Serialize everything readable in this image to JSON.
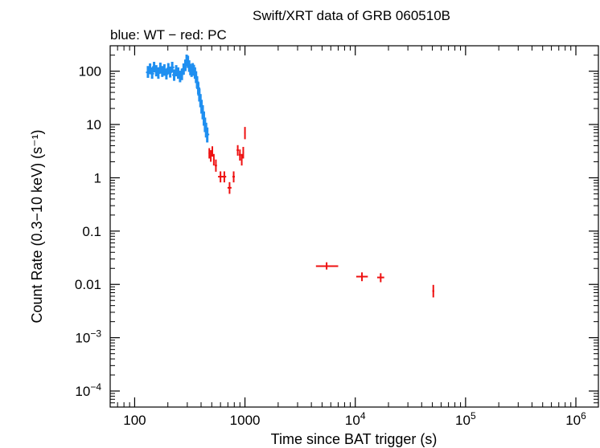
{
  "chart_data": {
    "type": "scatter",
    "title": "Swift/XRT data of GRB 060510B",
    "subtitle": "blue: WT − red: PC",
    "xlabel": "Time since BAT trigger (s)",
    "ylabel": "Count Rate (0.3−10 keV) (s⁻¹)",
    "x_scale": "log",
    "y_scale": "log",
    "xlim": [
      60,
      1600000
    ],
    "ylim": [
      5e-05,
      300
    ],
    "x_ticks": [
      {
        "value": 100,
        "base": "100",
        "exp": ""
      },
      {
        "value": 1000,
        "base": "1000",
        "exp": ""
      },
      {
        "value": 10000,
        "base": "10",
        "exp": "4"
      },
      {
        "value": 100000,
        "base": "10",
        "exp": "5"
      },
      {
        "value": 1000000,
        "base": "10",
        "exp": "6"
      }
    ],
    "y_ticks": [
      {
        "value": 100,
        "base": "100",
        "exp": ""
      },
      {
        "value": 10,
        "base": "10",
        "exp": ""
      },
      {
        "value": 1,
        "base": "1",
        "exp": ""
      },
      {
        "value": 0.1,
        "base": "0.1",
        "exp": ""
      },
      {
        "value": 0.01,
        "base": "0.01",
        "exp": ""
      },
      {
        "value": 0.001,
        "base": "10",
        "exp": "−3"
      },
      {
        "value": 0.0001,
        "base": "10",
        "exp": "−4"
      }
    ],
    "grid": false,
    "series": [
      {
        "name": "WT",
        "color": "#1f8ff0",
        "points": [
          {
            "x": 132,
            "y": 95,
            "ylo": 75,
            "yhi": 125
          },
          {
            "x": 138,
            "y": 110,
            "ylo": 88,
            "yhi": 140
          },
          {
            "x": 144,
            "y": 90,
            "ylo": 72,
            "yhi": 118
          },
          {
            "x": 150,
            "y": 120,
            "ylo": 95,
            "yhi": 150
          },
          {
            "x": 157,
            "y": 100,
            "ylo": 80,
            "yhi": 130
          },
          {
            "x": 164,
            "y": 92,
            "ylo": 72,
            "yhi": 118
          },
          {
            "x": 171,
            "y": 115,
            "ylo": 90,
            "yhi": 145
          },
          {
            "x": 178,
            "y": 98,
            "ylo": 78,
            "yhi": 125
          },
          {
            "x": 186,
            "y": 105,
            "ylo": 82,
            "yhi": 135
          },
          {
            "x": 194,
            "y": 88,
            "ylo": 70,
            "yhi": 112
          },
          {
            "x": 202,
            "y": 112,
            "ylo": 88,
            "yhi": 142
          },
          {
            "x": 210,
            "y": 96,
            "ylo": 76,
            "yhi": 122
          },
          {
            "x": 219,
            "y": 118,
            "ylo": 94,
            "yhi": 150
          },
          {
            "x": 228,
            "y": 85,
            "ylo": 66,
            "yhi": 108
          },
          {
            "x": 238,
            "y": 102,
            "ylo": 80,
            "yhi": 130
          },
          {
            "x": 248,
            "y": 92,
            "ylo": 72,
            "yhi": 118
          },
          {
            "x": 258,
            "y": 80,
            "ylo": 62,
            "yhi": 102
          },
          {
            "x": 268,
            "y": 88,
            "ylo": 68,
            "yhi": 112
          },
          {
            "x": 278,
            "y": 110,
            "ylo": 86,
            "yhi": 140
          },
          {
            "x": 288,
            "y": 130,
            "ylo": 100,
            "yhi": 165
          },
          {
            "x": 296,
            "y": 160,
            "ylo": 125,
            "yhi": 205
          },
          {
            "x": 304,
            "y": 150,
            "ylo": 115,
            "yhi": 195
          },
          {
            "x": 312,
            "y": 125,
            "ylo": 97,
            "yhi": 160
          },
          {
            "x": 320,
            "y": 108,
            "ylo": 84,
            "yhi": 138
          },
          {
            "x": 328,
            "y": 100,
            "ylo": 78,
            "yhi": 128
          },
          {
            "x": 336,
            "y": 112,
            "ylo": 88,
            "yhi": 142
          },
          {
            "x": 344,
            "y": 104,
            "ylo": 82,
            "yhi": 132
          },
          {
            "x": 352,
            "y": 92,
            "ylo": 72,
            "yhi": 118
          },
          {
            "x": 360,
            "y": 78,
            "ylo": 60,
            "yhi": 100
          },
          {
            "x": 368,
            "y": 62,
            "ylo": 48,
            "yhi": 80
          },
          {
            "x": 377,
            "y": 48,
            "ylo": 37,
            "yhi": 62
          },
          {
            "x": 386,
            "y": 36,
            "ylo": 27,
            "yhi": 47
          },
          {
            "x": 395,
            "y": 28,
            "ylo": 21,
            "yhi": 37
          },
          {
            "x": 404,
            "y": 22,
            "ylo": 16,
            "yhi": 29
          },
          {
            "x": 414,
            "y": 17,
            "ylo": 12.5,
            "yhi": 23
          },
          {
            "x": 424,
            "y": 13,
            "ylo": 9.5,
            "yhi": 17.5
          },
          {
            "x": 434,
            "y": 10,
            "ylo": 7.2,
            "yhi": 13.5
          },
          {
            "x": 444,
            "y": 8,
            "ylo": 5.7,
            "yhi": 10.8
          },
          {
            "x": 455,
            "y": 6.5,
            "ylo": 4.6,
            "yhi": 8.8
          }
        ]
      },
      {
        "name": "PC",
        "color": "#ee1111",
        "points": [
          {
            "x": 475,
            "y": 2.9,
            "xlo": 468,
            "xhi": 482,
            "ylo": 2.3,
            "yhi": 3.6
          },
          {
            "x": 490,
            "y": 2.6,
            "xlo": 483,
            "xhi": 497,
            "ylo": 2.0,
            "yhi": 3.3
          },
          {
            "x": 506,
            "y": 3.1,
            "xlo": 498,
            "xhi": 514,
            "ylo": 2.5,
            "yhi": 3.9
          },
          {
            "x": 522,
            "y": 2.2,
            "xlo": 515,
            "xhi": 530,
            "ylo": 1.7,
            "yhi": 2.8
          },
          {
            "x": 545,
            "y": 1.7,
            "xlo": 532,
            "xhi": 558,
            "ylo": 1.3,
            "yhi": 2.2
          },
          {
            "x": 600,
            "y": 1.05,
            "xlo": 570,
            "xhi": 630,
            "ylo": 0.82,
            "yhi": 1.32
          },
          {
            "x": 650,
            "y": 1.05,
            "xlo": 625,
            "xhi": 676,
            "ylo": 0.82,
            "yhi": 1.32
          },
          {
            "x": 725,
            "y": 0.65,
            "xlo": 695,
            "xhi": 755,
            "ylo": 0.5,
            "yhi": 0.83
          },
          {
            "x": 790,
            "y": 1.05,
            "xlo": 770,
            "xhi": 810,
            "ylo": 0.82,
            "yhi": 1.32
          },
          {
            "x": 860,
            "y": 3.3,
            "xlo": 840,
            "xhi": 880,
            "ylo": 2.6,
            "yhi": 4.1
          },
          {
            "x": 900,
            "y": 2.7,
            "xlo": 880,
            "xhi": 920,
            "ylo": 2.1,
            "yhi": 3.4
          },
          {
            "x": 935,
            "y": 2.2,
            "xlo": 920,
            "xhi": 950,
            "ylo": 1.7,
            "yhi": 2.8
          },
          {
            "x": 965,
            "y": 3.0,
            "xlo": 950,
            "xhi": 980,
            "ylo": 2.3,
            "yhi": 3.8
          },
          {
            "x": 1000,
            "y": 7.0,
            "xlo": 985,
            "xhi": 1015,
            "ylo": 5.3,
            "yhi": 9.0
          },
          {
            "x": 5500,
            "y": 0.022,
            "xlo": 4400,
            "xhi": 7000,
            "ylo": 0.019,
            "yhi": 0.026
          },
          {
            "x": 11500,
            "y": 0.014,
            "xlo": 10200,
            "xhi": 13000,
            "ylo": 0.0115,
            "yhi": 0.0168
          },
          {
            "x": 17000,
            "y": 0.0135,
            "xlo": 15800,
            "xhi": 18300,
            "ylo": 0.011,
            "yhi": 0.0162
          },
          {
            "x": 51000,
            "y": 0.0075,
            "xlo": 50000,
            "xhi": 52000,
            "ylo": 0.0057,
            "yhi": 0.0098
          }
        ]
      }
    ]
  }
}
